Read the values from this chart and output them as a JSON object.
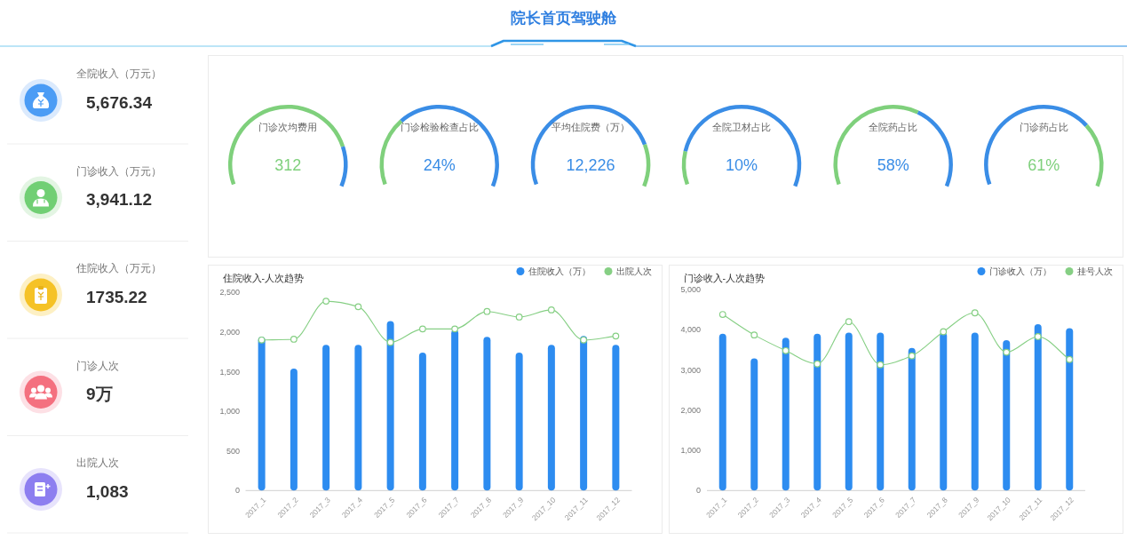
{
  "chart_data": [
    {
      "type": "other",
      "title": "院长首页驾驶舱"
    },
    {
      "type": "other",
      "annotations": [
        "全院收入（万元）",
        "5,676.34",
        "门诊收入（万元）",
        "3,941.12",
        "住院收入（万元）",
        "1735.22",
        "门诊人次",
        "9万",
        "出院人次",
        "1,083"
      ]
    },
    {
      "type": "donut",
      "title": "门诊次均费用",
      "categories": [
        null,
        null
      ],
      "values": [
        82,
        18
      ],
      "colors": [
        "#7fd07c",
        "#3a8de6"
      ],
      "annotations": [
        "312"
      ]
    },
    {
      "type": "donut",
      "title": "门诊检验检查占比",
      "categories": [
        null,
        null
      ],
      "values": [
        31,
        69
      ],
      "colors": [
        "#7fd07c",
        "#3a8de6"
      ],
      "annotations": [
        "24%"
      ]
    },
    {
      "type": "donut",
      "title": "平均住院费（万）",
      "categories": [
        null,
        null
      ],
      "values": [
        81,
        19
      ],
      "colors": [
        "#3a8de6",
        "#7fd07c"
      ],
      "annotations": [
        "12,226"
      ]
    },
    {
      "type": "donut",
      "title": "全院卫材占比",
      "categories": [
        null,
        null
      ],
      "values": [
        15,
        85
      ],
      "colors": [
        "#7fd07c",
        "#3a8de6"
      ],
      "annotations": [
        "10%"
      ]
    },
    {
      "type": "donut",
      "title": "全院药占比",
      "categories": [
        null,
        null
      ],
      "values": [
        61,
        39
      ],
      "colors": [
        "#7fd07c",
        "#3a8de6"
      ],
      "annotations": [
        "58%"
      ]
    },
    {
      "type": "donut",
      "title": "门诊药占比",
      "categories": [
        null,
        null
      ],
      "values": [
        71,
        29
      ],
      "colors": [
        "#3a8de6",
        "#7fd07c"
      ],
      "annotations": [
        "61%"
      ]
    },
    {
      "type": "bar",
      "title": "住院收入-人次趋势",
      "categories": [
        "2017_1",
        "2017_2",
        "2017_3",
        "2017_4",
        "2017_5",
        "2017_6",
        "2017_7",
        "2017_8",
        "2017_9",
        "2017_10",
        "2017_11",
        "2017_12"
      ],
      "series": [
        {
          "name": "住院收入（万）",
          "color": "#2d8cf0",
          "values": [
            1940,
            1540,
            1840,
            1840,
            2140,
            1740,
            2030,
            1940,
            1740,
            1840,
            1950,
            1840
          ]
        },
        {
          "name": "出院人次",
          "type": "line",
          "color": "#86cf84",
          "values": [
            1900,
            1910,
            2390,
            2320,
            1870,
            2040,
            2040,
            2260,
            2190,
            2280,
            1900,
            1950
          ]
        }
      ],
      "ylim": [
        0,
        2500
      ],
      "yticks": [
        {
          "value": 0,
          "label": "0"
        },
        {
          "value": 500,
          "label": "500"
        },
        {
          "value": 1000,
          "label": "1,000"
        },
        {
          "value": 1500,
          "label": "1,500"
        },
        {
          "value": 2000,
          "label": "2,000"
        },
        {
          "value": 2500,
          "label": "2,500"
        }
      ],
      "legend": "top right",
      "marker": "circle"
    },
    {
      "type": "bar",
      "title": "门诊收入-人次趋势",
      "categories": [
        "2017_1",
        "2017_2",
        "2017_3",
        "2017_4",
        "2017_5",
        "2017_6",
        "2017_7",
        "2017_8",
        "2017_9",
        "2017_10",
        "2017_11",
        "2017_12"
      ],
      "series": [
        {
          "name": "门诊收入（万）",
          "color": "#2d8cf0",
          "values": [
            3900,
            3290,
            3800,
            3900,
            3930,
            3930,
            3550,
            3930,
            3930,
            3740,
            4140,
            4040
          ]
        },
        {
          "name": "挂号人次",
          "type": "line",
          "color": "#86cf84",
          "values": [
            4380,
            3870,
            3480,
            3150,
            4200,
            3130,
            3350,
            3950,
            4420,
            3440,
            3830,
            3260
          ]
        }
      ],
      "ylim": [
        0,
        5000
      ],
      "yticks": [
        {
          "value": 0,
          "label": "0"
        },
        {
          "value": 1000,
          "label": "1,000"
        },
        {
          "value": 2000,
          "label": "2,000"
        },
        {
          "value": 3000,
          "label": "3,000"
        },
        {
          "value": 4000,
          "label": "4,000"
        },
        {
          "value": 5000,
          "label": "5,000"
        }
      ],
      "legend": "top right",
      "marker": "circle"
    }
  ]
}
